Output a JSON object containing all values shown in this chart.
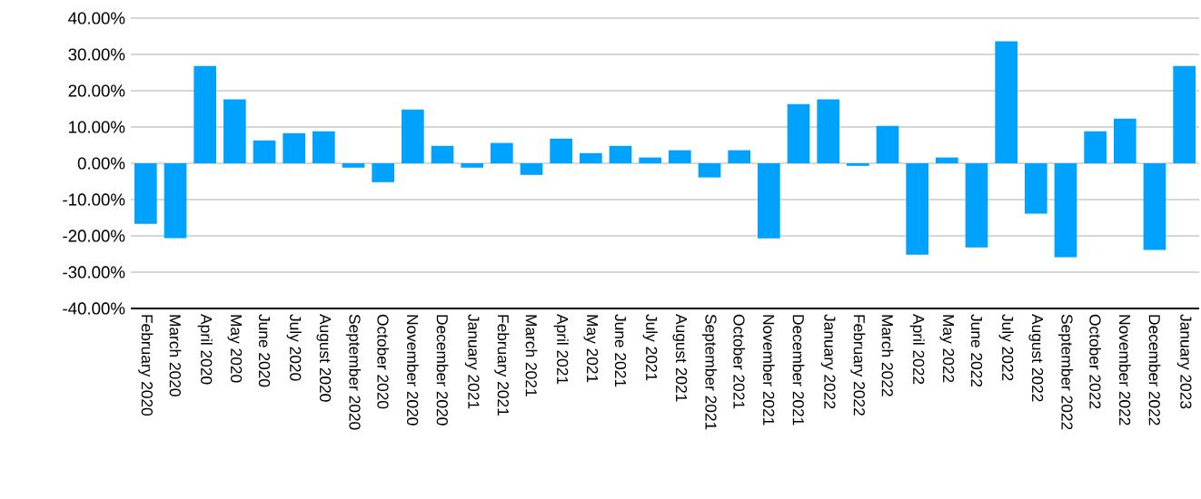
{
  "chart_data": {
    "type": "bar",
    "categories": [
      "February 2020",
      "March 2020",
      "April 2020",
      "May 2020",
      "June 2020",
      "July 2020",
      "August 2020",
      "September 2020",
      "October 2020",
      "November 2020",
      "December 2020",
      "January 2021",
      "February 2021",
      "March 2021",
      "April 2021",
      "May 2021",
      "June 2021",
      "July 2021",
      "August 2021",
      "September 2021",
      "October 2021",
      "November 2021",
      "December 2021",
      "January 2022",
      "February 2022",
      "March 2022",
      "April 2022",
      "May 2022",
      "June 2022",
      "July 2022",
      "August 2022",
      "September 2022",
      "October 2022",
      "November 2022",
      "December 2022",
      "January 2023"
    ],
    "values": [
      -16.7,
      -20.6,
      26.8,
      17.6,
      6.3,
      8.3,
      8.8,
      -1.2,
      -5.2,
      14.8,
      4.8,
      -1.2,
      5.6,
      -3.2,
      6.8,
      2.8,
      4.8,
      1.6,
      3.6,
      -3.9,
      3.6,
      -20.7,
      16.3,
      17.6,
      -0.7,
      10.3,
      -25.2,
      1.6,
      -23.2,
      33.6,
      -13.9,
      -25.9,
      8.8,
      12.3,
      -23.9,
      26.8
    ],
    "color": "#00a2ff",
    "ylim": [
      -40,
      40
    ],
    "yticks": [
      {
        "value": -40,
        "label": "-40.00%"
      },
      {
        "value": -30,
        "label": "-30.00%"
      },
      {
        "value": -20,
        "label": "-20.00%"
      },
      {
        "value": -10,
        "label": "-10.00%"
      },
      {
        "value": 0,
        "label": "0.00%"
      },
      {
        "value": 10,
        "label": "10.00%"
      },
      {
        "value": 20,
        "label": "20.00%"
      },
      {
        "value": 30,
        "label": "30.00%"
      },
      {
        "value": 40,
        "label": "40.00%"
      }
    ],
    "grid": "y"
  }
}
